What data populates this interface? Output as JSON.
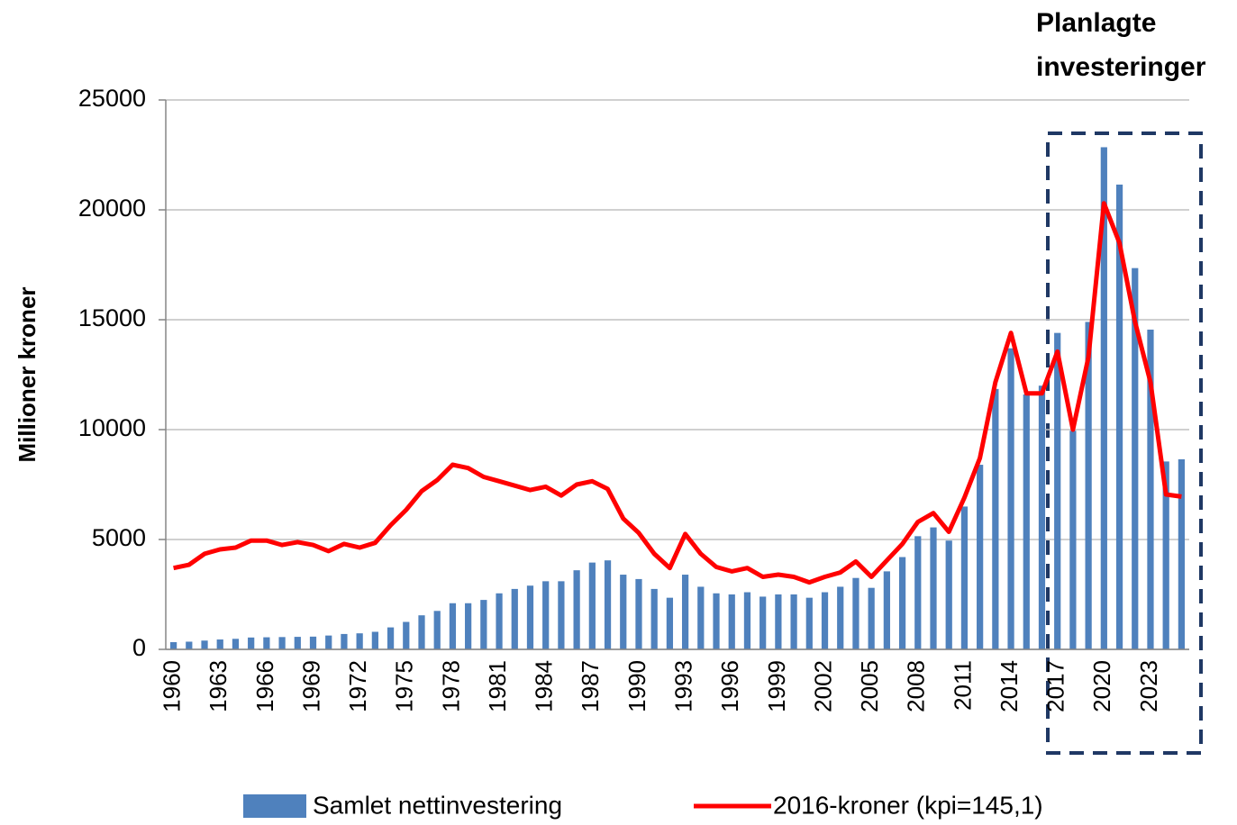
{
  "chart_data": {
    "type": "bar",
    "y_label": "Millioner kroner",
    "annotation": [
      "Planlagte",
      "investeringer"
    ],
    "categories": [
      "1960",
      null,
      null,
      "1963",
      null,
      null,
      "1966",
      null,
      null,
      "1969",
      null,
      null,
      "1972",
      null,
      null,
      "1975",
      null,
      null,
      "1978",
      null,
      null,
      "1981",
      null,
      null,
      "1984",
      null,
      null,
      "1987",
      null,
      null,
      "1990",
      null,
      null,
      "1993",
      null,
      null,
      "1996",
      null,
      null,
      "1999",
      null,
      null,
      "2002",
      null,
      null,
      "2005",
      null,
      null,
      "2008",
      null,
      null,
      "2011",
      null,
      null,
      "2014",
      null,
      null,
      "2017",
      null,
      null,
      "2020",
      null,
      null,
      "2023",
      null,
      null
    ],
    "series": [
      {
        "name": "Samlet nettinvestering",
        "type": "bar",
        "color": "#4f81bd",
        "values": [
          330,
          350,
          400,
          450,
          480,
          540,
          550,
          560,
          570,
          580,
          630,
          700,
          730,
          800,
          1000,
          1250,
          1550,
          1750,
          2100,
          2100,
          2250,
          2550,
          2750,
          2900,
          3100,
          3100,
          3600,
          3950,
          4050,
          3400,
          3200,
          2750,
          2350,
          3400,
          2850,
          2550,
          2500,
          2600,
          2400,
          2500,
          2500,
          2350,
          2600,
          2850,
          3250,
          2800,
          3550,
          4200,
          5150,
          5550,
          4950,
          6500,
          8400,
          11850,
          13700,
          11600,
          12000,
          14400,
          9950,
          14900,
          22850,
          21150,
          17350,
          14550,
          8550,
          8650
        ]
      },
      {
        "name": "2016-kroner (kpi=145,1)",
        "type": "line",
        "color": "#ff0000",
        "values": [
          3700,
          3850,
          4350,
          4550,
          4630,
          4950,
          4950,
          4750,
          4880,
          4750,
          4470,
          4800,
          4630,
          4850,
          5650,
          6350,
          7200,
          7700,
          8400,
          8250,
          7850,
          7650,
          7450,
          7250,
          7400,
          7000,
          7500,
          7650,
          7300,
          5950,
          5300,
          4350,
          3700,
          5250,
          4350,
          3750,
          3550,
          3700,
          3300,
          3400,
          3300,
          3050,
          3300,
          3500,
          4000,
          3300,
          4050,
          4800,
          5800,
          6200,
          5350,
          6900,
          8700,
          12150,
          14400,
          11650,
          11650,
          13550,
          10000,
          13300,
          20300,
          18500,
          14900,
          12150,
          7050,
          6950
        ]
      }
    ],
    "ylim": [
      0,
      25000
    ],
    "yticks": [
      0,
      5000,
      10000,
      15000,
      20000,
      25000
    ],
    "grid": true,
    "legend": "bottom"
  }
}
